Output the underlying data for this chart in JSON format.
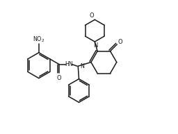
{
  "bg": "#ffffff",
  "lc": "#1a1a1a",
  "lw": 1.1,
  "figsize": [
    2.56,
    1.93
  ],
  "dpi": 100,
  "xlim": [
    0,
    10
  ],
  "ylim": [
    0,
    7.52
  ]
}
